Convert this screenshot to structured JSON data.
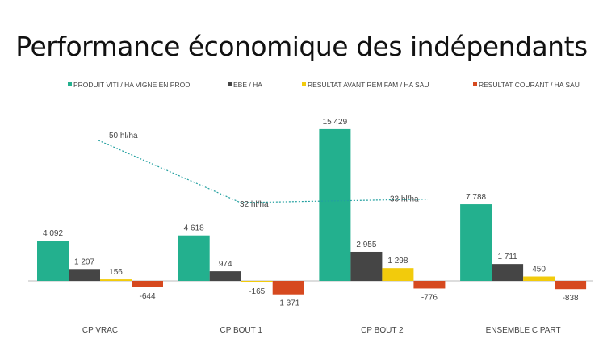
{
  "chart_data": {
    "type": "bar",
    "title": "Performance économique des indépendants",
    "categories": [
      "CP VRAC",
      "CP BOUT 1",
      "CP BOUT 2",
      "ENSEMBLE C PART"
    ],
    "series": [
      {
        "name": "PRODUIT VITI / HA VIGNE EN PROD",
        "color": "#23b08e",
        "values": [
          4092,
          4618,
          15429,
          7788
        ],
        "labels": [
          "4 092",
          "4 618",
          "15 429",
          "7 788"
        ]
      },
      {
        "name": "EBE / HA",
        "color": "#454545",
        "values": [
          1207,
          974,
          2955,
          1711
        ],
        "labels": [
          "1 207",
          "974",
          "2 955",
          "1 711"
        ]
      },
      {
        "name": "RESULTAT AVANT REM FAM / HA SAU",
        "color": "#f2cb0c",
        "values": [
          156,
          -165,
          1298,
          450
        ],
        "labels": [
          "156",
          "-165",
          "1 298",
          "450"
        ]
      },
      {
        "name": "RESULTAT COURANT / HA SAU",
        "color": "#d6491f",
        "values": [
          -644,
          -1371,
          -776,
          -838
        ],
        "labels": [
          "-644",
          "-1 371",
          "-776",
          "-838"
        ]
      }
    ],
    "line_series": {
      "type": "line",
      "style": "dotted",
      "color": "#23a0a0",
      "values": [
        50,
        32,
        33
      ],
      "labels": [
        "50 hl/ha",
        "32 hl/ha",
        "33 hl/ha"
      ]
    },
    "legend_position": "top",
    "grid": false,
    "y_axis_visible": false
  }
}
